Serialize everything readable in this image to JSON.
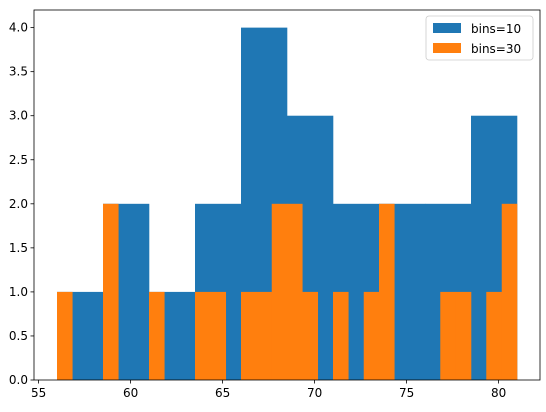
{
  "chart_data": {
    "type": "bar",
    "title": "",
    "xlabel": "",
    "ylabel": "",
    "xlim": [
      54.75,
      82.25
    ],
    "ylim": [
      0,
      4.2
    ],
    "x_ticks": [
      55,
      60,
      65,
      70,
      75,
      80
    ],
    "y_ticks": [
      0.0,
      0.5,
      1.0,
      1.5,
      2.0,
      2.5,
      3.0,
      3.5,
      4.0
    ],
    "y_tick_labels": [
      "0.0",
      "0.5",
      "1.0",
      "1.5",
      "2.0",
      "2.5",
      "3.0",
      "3.5",
      "4.0"
    ],
    "grid": false,
    "legend_position": "top-right",
    "series": [
      {
        "name": "bins=10",
        "color": "#1f77b4",
        "bin_edges": [
          56.0,
          58.5,
          61.0,
          63.5,
          66.0,
          68.5,
          71.0,
          73.5,
          76.0,
          78.5,
          81.0
        ],
        "values": [
          1,
          2,
          1,
          2,
          4,
          3,
          2,
          2,
          2,
          3
        ]
      },
      {
        "name": "bins=30",
        "color": "#ff7f0e",
        "bin_edges": [
          56.0,
          56.83,
          57.67,
          58.5,
          59.33,
          60.17,
          61.0,
          61.83,
          62.67,
          63.5,
          64.33,
          65.17,
          66.0,
          66.83,
          67.67,
          68.5,
          69.33,
          70.17,
          71.0,
          71.83,
          72.67,
          73.5,
          74.33,
          75.17,
          76.0,
          76.83,
          77.67,
          78.5,
          79.33,
          80.17,
          81.0
        ],
        "values": [
          1,
          0,
          0,
          2,
          0,
          0,
          1,
          0,
          0,
          1,
          1,
          0,
          1,
          1,
          2,
          2,
          1,
          0,
          1,
          0,
          1,
          2,
          0,
          0,
          0,
          1,
          1,
          0,
          1,
          2
        ]
      }
    ]
  }
}
